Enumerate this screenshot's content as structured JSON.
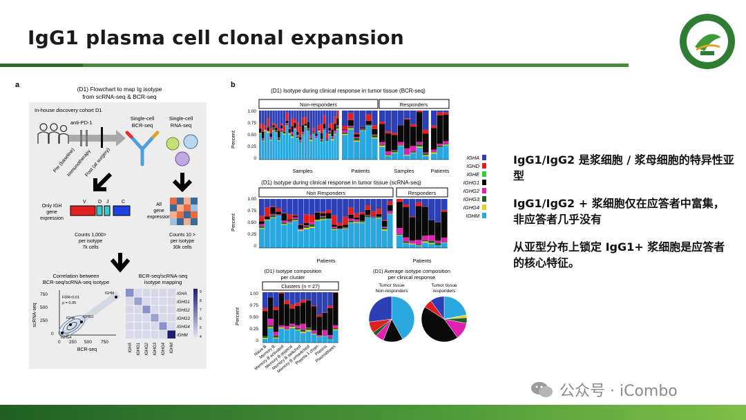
{
  "slide": {
    "title": "IgG1 plasma cell clonal expansion",
    "bullets": [
      "IgG1/IgG2 是浆细胞 / 浆母细胞的特异性亚型",
      "IgG1/IgG2 + 浆细胞仅在应答者中富集，非应答者几乎没有",
      "从亚型分布上锁定 IgG1+ 浆细胞是应答者的核心特征。"
    ],
    "watermark": "公众号 · iCombo"
  },
  "panel_a": {
    "label": "a",
    "title_line1": "(D1) Flowchart to map Ig isotype",
    "title_line2": "from scRNA-seq & BCR-seq",
    "cohort": "In-house discovery cohort D1",
    "anti": "anti-PD-1",
    "pre": "Pre (baseline)",
    "immuno": "Immunotherapy",
    "post": "Post (at surgery)",
    "sc_bcr_1": "Single-cell",
    "sc_bcr_2": "BCR-seq",
    "sc_rna_1": "Single-cell",
    "sc_rna_2": "RNA-seq",
    "only_igh_1": "Only IGH",
    "only_igh_2": "gene",
    "only_igh_3": "expression",
    "seg_v": "V",
    "seg_d": "D",
    "seg_j": "J",
    "seg_c": "C",
    "all_gene_1": "All",
    "all_gene_2": "gene",
    "all_gene_3": "expression",
    "counts_l1": "Counts 1,000>",
    "counts_l2": "per isotype",
    "counts_l3": "7k cells",
    "counts_r1": "Counts 10 >",
    "counts_r2": "per isotype",
    "counts_r3": "30k cells",
    "corr_1": "Correlation between",
    "corr_2": "BCR-seq/scRNA-seq isotype",
    "map_1": "BCR-seq/scRNA-seq",
    "map_2": "isotype mapping",
    "fdr": "FDR<0.01",
    "rho": "ρ = 0.95",
    "xlabel": "BCR-seq",
    "ylabel": "scRNA-seq",
    "ticks": [
      "0",
      "250",
      "500",
      "750"
    ],
    "pt_ighm": "IGHM",
    "pt_igha": "IGHA",
    "pt_ighg1": "IGHG1",
    "pt_ighg4": "IGHG4",
    "isotypes": [
      "IGHA",
      "IGHG1",
      "IGHG2",
      "IGHG3",
      "IGHG4",
      "IGHM"
    ],
    "scale": [
      "9",
      "8",
      "7",
      "6",
      "5",
      "4"
    ]
  },
  "panel_b": {
    "label": "b",
    "bcr_title": "(D1) Isotype during clinical response in tumor tissue (BCR-seq)",
    "sc_title": "(D1) Isotype during clinical response in tumor tissue (scRNA-seq)",
    "nonresp": "Non-responders",
    "resp": "Responders",
    "nonresp2": "Non Responders",
    "samples": "Samples",
    "patients": "Patients",
    "percent": "Percent",
    "yticks": [
      "0",
      "0.25",
      "0.50",
      "0.75",
      "1.00"
    ],
    "cluster_title1": "(D1) Isotype composition",
    "cluster_title2": "per cluster",
    "clusters": "Clusters (n = 27)",
    "avg_title1": "(D1) Average isotype composition",
    "avg_title2": "per clinical response",
    "pie1_1": "Tumor tissue",
    "pie1_2": "Non-responders",
    "pie2_1": "Tumor tissue",
    "pie2_2": "responders",
    "cluster_names": [
      "Naive B",
      "Memory B",
      "Memory B activated",
      "Memory B atypical",
      "Memory B switched",
      "Memory B unswitched",
      "Plasma λ chain",
      "Plasma",
      "Plasmablasts"
    ]
  },
  "legend": [
    {
      "name": "IGHA",
      "color": "#2d3fb5"
    },
    {
      "name": "IGHD",
      "color": "#e02020"
    },
    {
      "name": "IGHE",
      "color": "#33cc33"
    },
    {
      "name": "IGHG1",
      "color": "#0a0a0a"
    },
    {
      "name": "IGHG2",
      "color": "#e020b0"
    },
    {
      "name": "IGHG3",
      "color": "#1f5f1f"
    },
    {
      "name": "IGHG4",
      "color": "#e6d21a"
    },
    {
      "name": "IGHM",
      "color": "#29a8e0"
    }
  ]
}
